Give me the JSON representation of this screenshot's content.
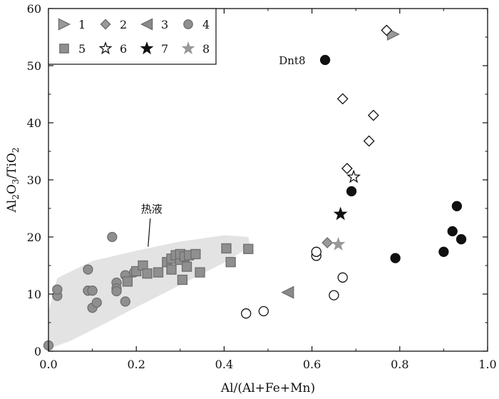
{
  "chart_data": {
    "type": "scatter",
    "xlabel": "Al/(Al+Fe+Mn)",
    "ylabel_parts": [
      "Al",
      "2",
      "O",
      "3",
      "/TiO",
      "2"
    ],
    "xlim": [
      0.0,
      1.0
    ],
    "ylim": [
      0,
      60
    ],
    "xticks": [
      "0.0",
      "0.2",
      "0.4",
      "0.6",
      "0.8",
      "1.0"
    ],
    "yticks": [
      "0",
      "10",
      "20",
      "30",
      "40",
      "50",
      "60"
    ],
    "legend_position": "top-left",
    "legend": [
      "1",
      "2",
      "3",
      "4",
      "5",
      "6",
      "7",
      "8"
    ],
    "annotations": [
      {
        "text": "热液",
        "x": 0.235,
        "y": 25
      },
      {
        "text": "Dnt8",
        "x": 0.555,
        "y": 51
      }
    ],
    "region": {
      "name": "热液",
      "polygon": [
        [
          0.0,
          7
        ],
        [
          0.02,
          12.8
        ],
        [
          0.1,
          15.8
        ],
        [
          0.2,
          17.6
        ],
        [
          0.3,
          19.2
        ],
        [
          0.4,
          20.3
        ],
        [
          0.455,
          20.0
        ],
        [
          0.46,
          18.3
        ],
        [
          0.4,
          15.5
        ],
        [
          0.3,
          11.6
        ],
        [
          0.2,
          7.7
        ],
        [
          0.12,
          4.5
        ],
        [
          0.05,
          1.8
        ],
        [
          0.0,
          0.4
        ]
      ]
    },
    "series": [
      {
        "name": "1",
        "marker": "triangle-right",
        "color": "#999999",
        "fill": true,
        "points": [
          [
            0.785,
            55.5
          ]
        ]
      },
      {
        "name": "2",
        "marker": "diamond",
        "color": "#999999",
        "fill": true,
        "points": [
          [
            0.635,
            19.0
          ]
        ]
      },
      {
        "name": "3",
        "marker": "triangle-left",
        "color": "#8a8a8a",
        "fill": true,
        "points": [
          [
            0.545,
            10.3
          ]
        ]
      },
      {
        "name": "4",
        "marker": "circle",
        "color": "#8f8f8f",
        "fill": true,
        "points": [
          [
            0.0,
            1.0
          ],
          [
            0.02,
            9.7
          ],
          [
            0.02,
            10.8
          ],
          [
            0.09,
            10.6
          ],
          [
            0.09,
            14.3
          ],
          [
            0.1,
            10.6
          ],
          [
            0.1,
            7.6
          ],
          [
            0.11,
            8.5
          ],
          [
            0.145,
            20.0
          ],
          [
            0.155,
            12.0
          ],
          [
            0.155,
            11.0
          ],
          [
            0.155,
            10.5
          ],
          [
            0.175,
            8.7
          ],
          [
            0.175,
            13.3
          ],
          [
            0.195,
            13.8
          ]
        ]
      },
      {
        "name": "5",
        "marker": "square",
        "color": "#8f8f8f",
        "fill": true,
        "points": [
          [
            0.18,
            12.2
          ],
          [
            0.2,
            14.0
          ],
          [
            0.215,
            15.0
          ],
          [
            0.225,
            13.6
          ],
          [
            0.25,
            13.8
          ],
          [
            0.27,
            15.6
          ],
          [
            0.28,
            16.2
          ],
          [
            0.28,
            14.3
          ],
          [
            0.29,
            16.8
          ],
          [
            0.3,
            16.0
          ],
          [
            0.3,
            17.0
          ],
          [
            0.305,
            12.5
          ],
          [
            0.31,
            16.6
          ],
          [
            0.315,
            14.8
          ],
          [
            0.32,
            16.8
          ],
          [
            0.335,
            17.0
          ],
          [
            0.345,
            13.8
          ],
          [
            0.405,
            18.0
          ],
          [
            0.415,
            15.6
          ],
          [
            0.455,
            17.9
          ]
        ]
      },
      {
        "name": "6",
        "marker": "star",
        "color": "#111111",
        "fill": false,
        "points": [
          [
            0.695,
            30.5
          ]
        ]
      },
      {
        "name": "7",
        "marker": "star",
        "color": "#111111",
        "fill": true,
        "points": [
          [
            0.665,
            24.0
          ]
        ]
      },
      {
        "name": "8",
        "marker": "star",
        "color": "#999999",
        "fill": true,
        "points": [
          [
            0.66,
            18.7
          ]
        ]
      },
      {
        "marker": "diamond",
        "color": "#111111",
        "fill": false,
        "points": [
          [
            0.77,
            56.2
          ],
          [
            0.67,
            44.2
          ],
          [
            0.74,
            41.3
          ],
          [
            0.73,
            36.8
          ],
          [
            0.68,
            32.0
          ]
        ]
      },
      {
        "marker": "circle",
        "color": "#111111",
        "fill": true,
        "points": [
          [
            0.63,
            51.0
          ],
          [
            0.69,
            28.0
          ],
          [
            0.79,
            16.3
          ],
          [
            0.9,
            17.4
          ],
          [
            0.92,
            21.0
          ],
          [
            0.93,
            25.4
          ],
          [
            0.94,
            19.6
          ]
        ]
      },
      {
        "marker": "circle",
        "color": "#111111",
        "fill": false,
        "points": [
          [
            0.45,
            6.6
          ],
          [
            0.49,
            7.0
          ],
          [
            0.61,
            16.7
          ],
          [
            0.61,
            17.4
          ],
          [
            0.65,
            9.8
          ],
          [
            0.67,
            12.9
          ]
        ]
      }
    ]
  }
}
